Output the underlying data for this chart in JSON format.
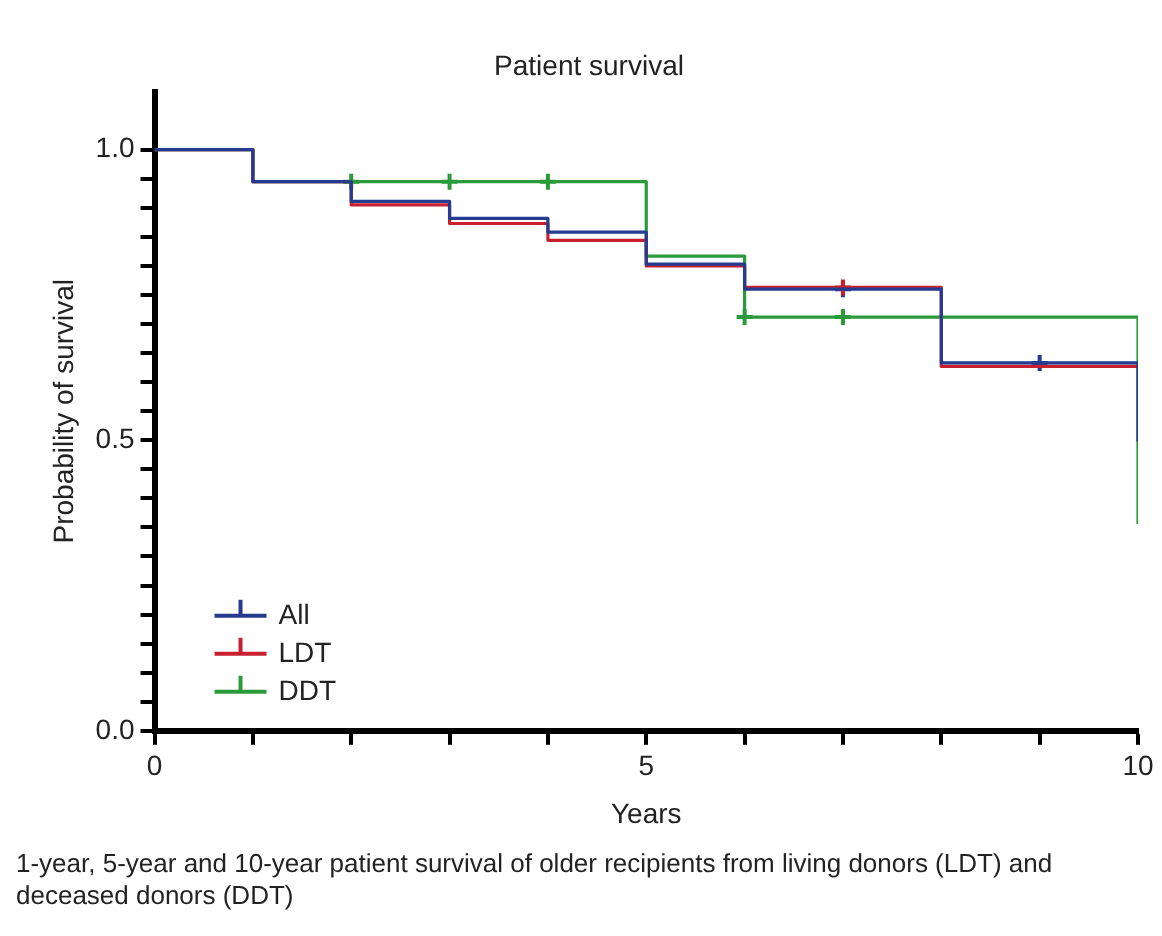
{
  "chart_data": {
    "type": "step",
    "title": "Patient survival",
    "xlabel": "Years",
    "ylabel": "Probability of survival",
    "xlim": [
      0,
      10
    ],
    "xticks": [
      0,
      {
        "value": 1,
        "label": null
      },
      {
        "value": 2,
        "label": null
      },
      {
        "value": 3,
        "label": null
      },
      {
        "value": 4,
        "label": null
      },
      5,
      {
        "value": 6,
        "label": null
      },
      {
        "value": 7,
        "label": null
      },
      {
        "value": 8,
        "label": null
      },
      {
        "value": 9,
        "label": null
      },
      10
    ],
    "ylim": [
      0,
      1.1
    ],
    "yticks": [
      {
        "value": 0,
        "label": "0.0"
      },
      {
        "value": 0.05,
        "label": null
      },
      {
        "value": 0.1,
        "label": null
      },
      {
        "value": 0.15,
        "label": null
      },
      {
        "value": 0.2,
        "label": null
      },
      {
        "value": 0.25,
        "label": null
      },
      {
        "value": 0.3,
        "label": null
      },
      {
        "value": 0.35,
        "label": null
      },
      {
        "value": 0.4,
        "label": null
      },
      {
        "value": 0.45,
        "label": null
      },
      0.5,
      {
        "value": 0.55,
        "label": null
      },
      {
        "value": 0.6,
        "label": null
      },
      {
        "value": 0.65,
        "label": null
      },
      {
        "value": 0.7,
        "label": null
      },
      {
        "value": 0.75,
        "label": null
      },
      {
        "value": 0.8,
        "label": null
      },
      {
        "value": 0.85,
        "label": null
      },
      {
        "value": 0.9,
        "label": null
      },
      {
        "value": 0.95,
        "label": null
      },
      {
        "value": 1,
        "label": "1.0"
      }
    ],
    "grid": false,
    "legend": "bottom left",
    "marker": "none",
    "series": [
      {
        "name": "All",
        "color": "#253b8f",
        "x": [
          0,
          1,
          2,
          3,
          4,
          5,
          6,
          8,
          10
        ],
        "values": [
          1,
          0.945,
          0.911,
          0.882,
          0.858,
          0.803,
          0.76,
          0.633,
          0.498
        ]
      },
      {
        "name": "LDT",
        "color": "#c8202f",
        "x": [
          0,
          1,
          2,
          3,
          4,
          5,
          6,
          8,
          10
        ],
        "values": [
          1,
          0.945,
          0.905,
          0.873,
          0.844,
          0.8,
          0.763,
          0.627,
          0.627
        ]
      },
      {
        "name": "DDT",
        "color": "#2a9a3a",
        "x": [
          0,
          1,
          5,
          6,
          10
        ],
        "values": [
          1,
          0.945,
          0.817,
          0.712,
          0.356
        ]
      },
      {
        "type": "scatter",
        "marker": "cross",
        "color": "#2a9a3a",
        "x": [
          2,
          3,
          4,
          6,
          7
        ],
        "values": [
          0.945,
          0.945,
          0.945,
          0.712,
          0.712
        ]
      },
      {
        "type": "scatter",
        "marker": "cross",
        "color": "#c8202f",
        "x": [
          7
        ],
        "values": [
          0.763
        ]
      },
      {
        "type": "scatter",
        "marker": "cross",
        "color": "#253b8f",
        "x": [
          7,
          9
        ],
        "values": [
          0.76,
          0.633
        ]
      }
    ],
    "annotations": [
      "1-year, 5-year and 10-year patient survival of older recipients from living donors (LDT) and deceased donors (DDT)"
    ]
  }
}
